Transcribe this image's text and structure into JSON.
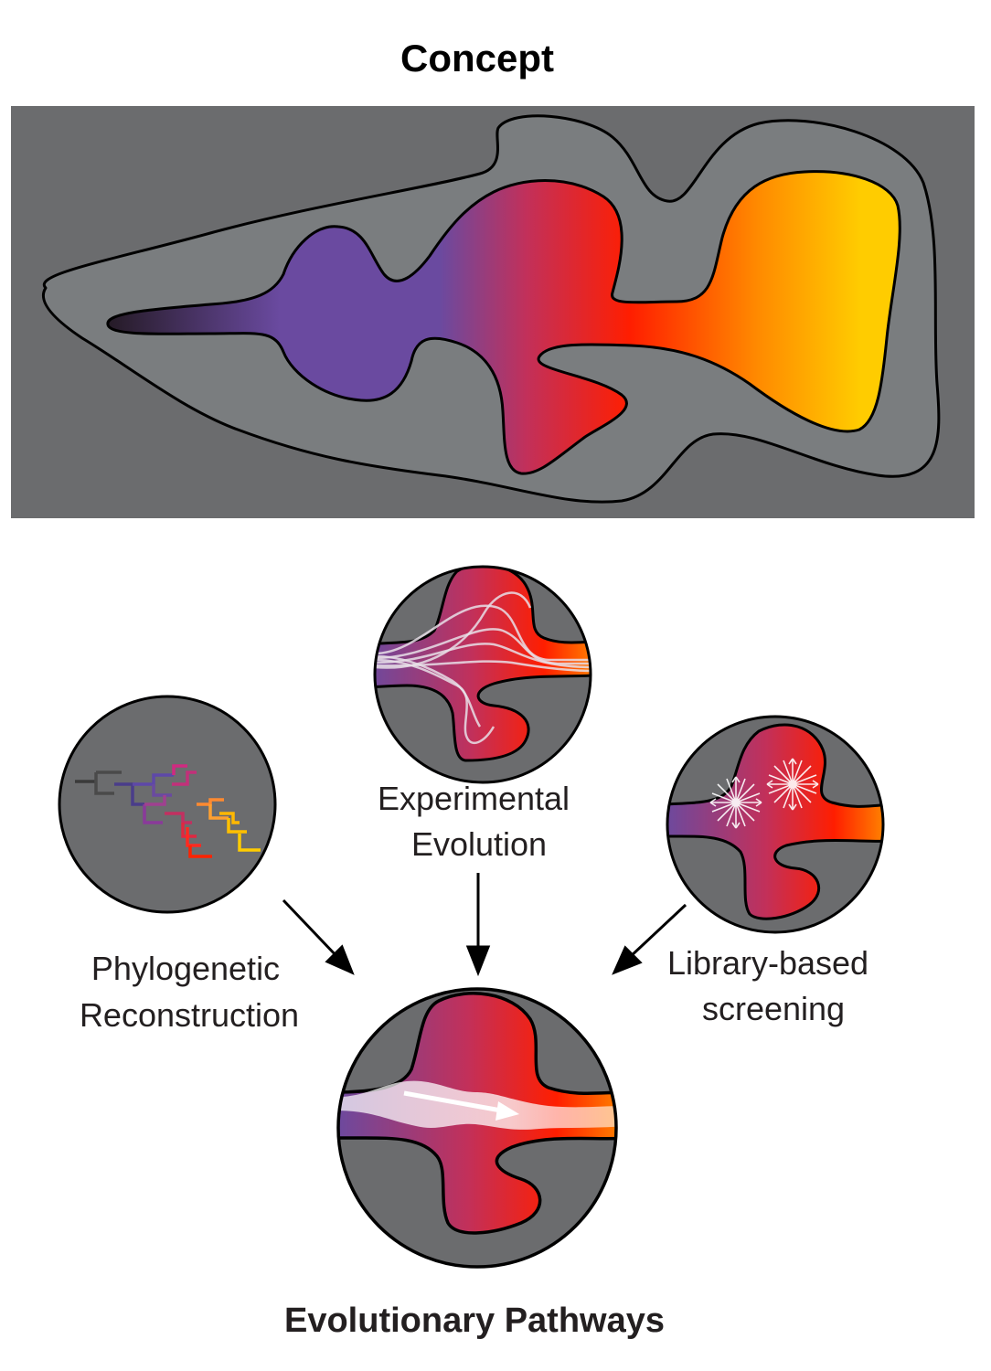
{
  "header": {
    "title": "Concept"
  },
  "methods": {
    "experimental": {
      "line1": "Experimental",
      "line2": "Evolution"
    },
    "phylogenetic": {
      "line1": "Phylogenetic",
      "line2": "Reconstruction"
    },
    "library": {
      "line1": "Library-based",
      "line2": "screening"
    }
  },
  "result": {
    "title": "Evolutionary Pathways"
  },
  "colors": {
    "background_panel": "#6b6c6e",
    "landscape_outer": "#7a7d7f",
    "gradient_dark": "#2a1f2a",
    "gradient_purple": "#6a4aa0",
    "gradient_red": "#ff1e00",
    "gradient_orange": "#ff8a00",
    "gradient_yellow": "#ffcc00"
  }
}
